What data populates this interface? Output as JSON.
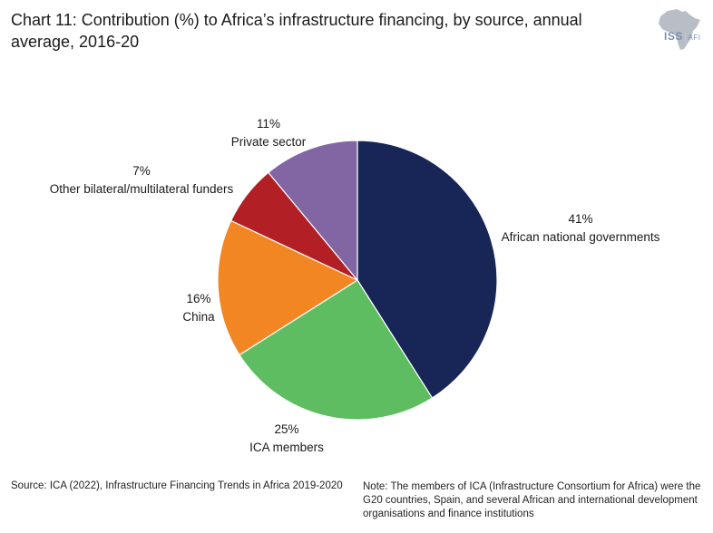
{
  "header": {
    "title": "Chart 11: Contribution (%) to Africa’s infrastructure financing, by source, annual average, 2016-20"
  },
  "logo": {
    "text": "ISS",
    "suffix": "AFI",
    "map_color": "#b8bdc6"
  },
  "chart_data": {
    "type": "pie",
    "title": "Contribution (%) to Africa’s infrastructure financing, by source, annual average, 2016-20",
    "start_angle_deg": 0,
    "direction": "clockwise",
    "slices": [
      {
        "label": "African national governments",
        "value": 41,
        "value_label": "41%",
        "color": "#172557"
      },
      {
        "label": "ICA members",
        "value": 25,
        "value_label": "25%",
        "color": "#5dbd60"
      },
      {
        "label": "China",
        "value": 16,
        "value_label": "16%",
        "color": "#f28622"
      },
      {
        "label": "Other bilateral/multilateral funders",
        "value": 7,
        "value_label": "7%",
        "color": "#b22025"
      },
      {
        "label": "Private sector",
        "value": 11,
        "value_label": "11%",
        "color": "#8265a3"
      }
    ]
  },
  "footer": {
    "source": "Source: ICA (2022), Infrastructure Financing Trends in Africa 2019-2020",
    "note": "Note: The members of ICA (Infrastructure Consortium for Africa) were the G20 countries, Spain, and several African and international development organisations and finance institutions"
  }
}
